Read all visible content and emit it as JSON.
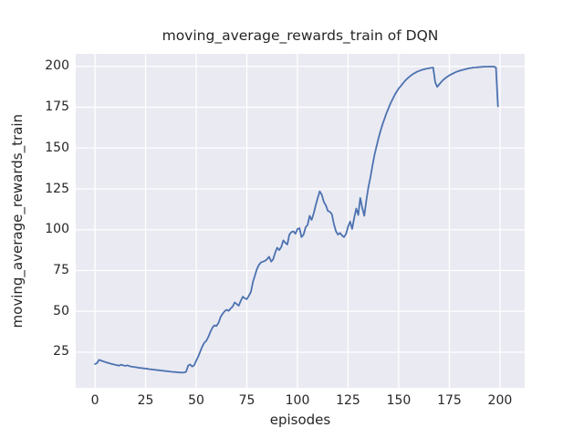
{
  "chart_data": {
    "type": "line",
    "title": "moving_average_rewards_train of DQN",
    "xlabel": "episodes",
    "ylabel": "moving_average_rewards_train",
    "x_ticks": [
      0,
      25,
      50,
      75,
      100,
      125,
      150,
      175,
      200
    ],
    "y_ticks": [
      25,
      50,
      75,
      100,
      125,
      150,
      175,
      200
    ],
    "xlim": [
      -9.5,
      212.2
    ],
    "ylim": [
      3.2,
      207.7
    ],
    "grid": true,
    "legend_position": "none",
    "style": {
      "line_color": "#4c72b0",
      "line_width": 1.8,
      "axes_background": "#eaeaf2",
      "grid_color": "#ffffff",
      "grid_width": 1.3,
      "figure_background": "#ffffff",
      "text_color": "#262626"
    },
    "series": [
      {
        "name": "moving_average_rewards_train",
        "x_start": 0,
        "x_step": 1,
        "y": [
          17.8,
          18.3,
          20.3,
          19.9,
          19.4,
          19.0,
          18.6,
          18.3,
          17.9,
          17.6,
          17.3,
          17.0,
          16.8,
          17.4,
          16.9,
          16.6,
          17.0,
          16.5,
          16.2,
          16.0,
          15.8,
          15.6,
          15.4,
          15.3,
          15.1,
          15.0,
          14.8,
          14.6,
          14.5,
          14.3,
          14.2,
          14.0,
          13.9,
          13.7,
          13.6,
          13.4,
          13.3,
          13.2,
          13.0,
          12.9,
          12.8,
          12.7,
          12.6,
          12.5,
          12.6,
          13.0,
          16.8,
          17.5,
          16.2,
          17.0,
          19.8,
          22.5,
          25.5,
          28.5,
          30.8,
          32.0,
          34.5,
          37.5,
          40.0,
          41.5,
          41.0,
          43.0,
          46.5,
          48.5,
          50.0,
          51.0,
          50.3,
          51.8,
          53.0,
          55.5,
          54.5,
          53.5,
          56.5,
          59.0,
          58.0,
          57.5,
          59.5,
          62.0,
          68.0,
          72.0,
          76.0,
          78.5,
          80.0,
          80.5,
          81.0,
          82.0,
          83.5,
          80.5,
          82.0,
          86.0,
          89.0,
          87.5,
          89.5,
          93.5,
          92.0,
          91.0,
          97.0,
          98.5,
          99.0,
          97.5,
          100.5,
          101.0,
          95.5,
          97.0,
          101.5,
          103.0,
          108.5,
          106.0,
          110.0,
          115.0,
          119.5,
          123.5,
          121.5,
          117.0,
          115.0,
          111.5,
          111.0,
          109.5,
          103.5,
          99.0,
          97.0,
          98.0,
          96.5,
          95.5,
          97.5,
          102.0,
          105.0,
          100.5,
          107.0,
          113.0,
          109.0,
          119.5,
          113.5,
          108.5,
          118.0,
          126.0,
          132.0,
          139.0,
          145.5,
          151.0,
          156.0,
          160.5,
          164.5,
          168.0,
          171.5,
          174.5,
          177.5,
          180.0,
          182.5,
          184.5,
          186.5,
          188.0,
          189.5,
          191.0,
          192.3,
          193.4,
          194.4,
          195.3,
          196.0,
          196.7,
          197.2,
          197.7,
          198.1,
          198.4,
          198.7,
          198.9,
          199.1,
          199.3,
          190.5,
          187.5,
          189.0,
          190.5,
          191.8,
          192.8,
          193.7,
          194.5,
          195.2,
          195.8,
          196.4,
          196.9,
          197.3,
          197.7,
          198.0,
          198.3,
          198.6,
          198.9,
          199.1,
          199.3,
          199.4,
          199.5,
          199.6,
          199.7,
          199.8,
          199.8,
          199.9,
          199.9,
          199.9,
          199.9,
          199.4,
          175.5
        ]
      }
    ]
  }
}
